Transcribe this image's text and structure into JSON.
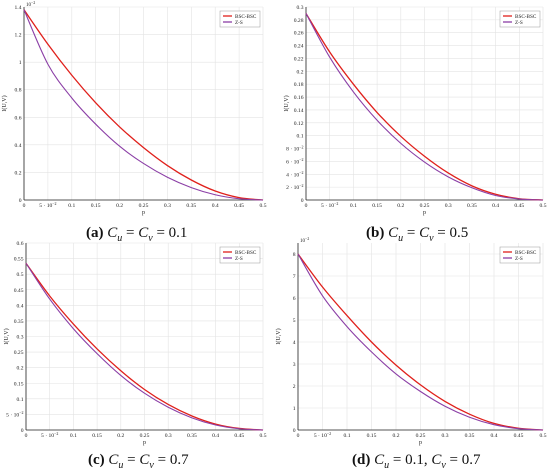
{
  "chart_data": [
    {
      "type": "line",
      "panel": "a",
      "caption_tag": "(a)",
      "caption_parts": [
        "C",
        "u",
        " = ",
        "C",
        "v",
        " = 0.1"
      ],
      "xlabel": "p",
      "ylabel": "I(U,V)",
      "y_multiplier_label": "10",
      "y_multiplier_exp": "−2",
      "xlim": [
        0,
        0.5
      ],
      "ylim": [
        0,
        1.4
      ],
      "x_ticks": [
        "0",
        "5 · 10",
        "0.1",
        "0.15",
        "0.2",
        "0.25",
        "0.3",
        "0.35",
        "0.4",
        "0.45",
        "0.5"
      ],
      "x_tick_values": [
        0,
        0.05,
        0.1,
        0.15,
        0.2,
        0.25,
        0.3,
        0.35,
        0.4,
        0.45,
        0.5
      ],
      "x_tick_exp": "−2",
      "y_ticks": [
        "0",
        "0.2",
        "0.4",
        "0.6",
        "0.8",
        "1",
        "1.2",
        "1.4"
      ],
      "y_tick_values": [
        0,
        0.2,
        0.4,
        0.6,
        0.8,
        1.0,
        1.2,
        1.4
      ],
      "legend_position": "top-right",
      "x": [
        0,
        0.05,
        0.1,
        0.15,
        0.2,
        0.25,
        0.3,
        0.35,
        0.4,
        0.45,
        0.5
      ],
      "series": [
        {
          "name": "BSC-BSC",
          "color": "#e0201b",
          "values": [
            1.38,
            1.13,
            0.905,
            0.705,
            0.53,
            0.38,
            0.25,
            0.145,
            0.065,
            0.017,
            0
          ]
        },
        {
          "name": "Z-S",
          "color": "#8b3fa6",
          "values": [
            1.38,
            0.985,
            0.74,
            0.55,
            0.39,
            0.265,
            0.165,
            0.09,
            0.038,
            0.009,
            0
          ]
        }
      ]
    },
    {
      "type": "line",
      "panel": "b",
      "caption_tag": "(b)",
      "caption_parts": [
        "C",
        "u",
        " = ",
        "C",
        "v",
        " = 0.5"
      ],
      "xlabel": "p",
      "ylabel": "I(U,V)",
      "xlim": [
        0,
        0.5
      ],
      "ylim": [
        0,
        0.3
      ],
      "x_ticks": [
        "0",
        "5 · 10",
        "0.1",
        "0.15",
        "0.2",
        "0.25",
        "0.3",
        "0.35",
        "0.4",
        "0.45",
        "0.5"
      ],
      "x_tick_values": [
        0,
        0.05,
        0.1,
        0.15,
        0.2,
        0.25,
        0.3,
        0.35,
        0.4,
        0.45,
        0.5
      ],
      "x_tick_exp": "−2",
      "y_ticks": [
        "0",
        "2 · 10",
        "4 · 10",
        "6 · 10",
        "8 · 10",
        "0.1",
        "0.12",
        "0.14",
        "0.16",
        "0.18",
        "0.2",
        "0.22",
        "0.24",
        "0.26",
        "0.28",
        "0.3"
      ],
      "y_tick_exps": [
        "",
        "−2",
        "−2",
        "−2",
        "−2",
        "",
        "",
        "",
        "",
        "",
        "",
        "",
        "",
        "",
        "",
        ""
      ],
      "y_tick_values": [
        0,
        0.02,
        0.04,
        0.06,
        0.08,
        0.1,
        0.12,
        0.14,
        0.16,
        0.18,
        0.2,
        0.22,
        0.24,
        0.26,
        0.28,
        0.3
      ],
      "legend_position": "top-right",
      "x": [
        0,
        0.05,
        0.1,
        0.15,
        0.2,
        0.25,
        0.3,
        0.35,
        0.4,
        0.45,
        0.5
      ],
      "series": [
        {
          "name": "BSC-BSC",
          "color": "#e0201b",
          "values": [
            0.29,
            0.23,
            0.18,
            0.136,
            0.099,
            0.068,
            0.042,
            0.022,
            0.009,
            0.002,
            0
          ]
        },
        {
          "name": "Z-S",
          "color": "#8b3fa6",
          "values": [
            0.29,
            0.222,
            0.168,
            0.124,
            0.088,
            0.059,
            0.036,
            0.019,
            0.007,
            0.0015,
            0
          ]
        }
      ]
    },
    {
      "type": "line",
      "panel": "c",
      "caption_tag": "(c)",
      "caption_parts": [
        "C",
        "u",
        " = ",
        "C",
        "v",
        " = 0.7"
      ],
      "xlabel": "p",
      "ylabel": "I(U,V)",
      "xlim": [
        0,
        0.5
      ],
      "ylim": [
        0,
        0.6
      ],
      "x_ticks": [
        "0",
        "5 · 10",
        "0.1",
        "0.15",
        "0.2",
        "0.25",
        "0.3",
        "0.35",
        "0.4",
        "0.45",
        "0.5"
      ],
      "x_tick_values": [
        0,
        0.05,
        0.1,
        0.15,
        0.2,
        0.25,
        0.3,
        0.35,
        0.4,
        0.45,
        0.5
      ],
      "x_tick_exp": "−2",
      "y_ticks": [
        "0",
        "5 · 10",
        "0.1",
        "0.15",
        "0.2",
        "0.25",
        "0.3",
        "0.35",
        "0.4",
        "0.45",
        "0.5",
        "0.55",
        "0.6"
      ],
      "y_tick_exps": [
        "",
        "−2",
        "",
        "",
        "",
        "",
        "",
        "",
        "",
        "",
        "",
        "",
        ""
      ],
      "y_tick_values": [
        0,
        0.05,
        0.1,
        0.15,
        0.2,
        0.25,
        0.3,
        0.35,
        0.4,
        0.45,
        0.5,
        0.55,
        0.6
      ],
      "legend_position": "top-right",
      "x": [
        0,
        0.05,
        0.1,
        0.15,
        0.2,
        0.25,
        0.3,
        0.35,
        0.4,
        0.45,
        0.5
      ],
      "series": [
        {
          "name": "BSC-BSC",
          "color": "#e0201b",
          "values": [
            0.535,
            0.43,
            0.34,
            0.26,
            0.19,
            0.13,
            0.082,
            0.045,
            0.019,
            0.005,
            0
          ]
        },
        {
          "name": "Z-S",
          "color": "#8b3fa6",
          "values": [
            0.535,
            0.42,
            0.325,
            0.245,
            0.175,
            0.118,
            0.073,
            0.039,
            0.016,
            0.004,
            0
          ]
        }
      ]
    },
    {
      "type": "line",
      "panel": "d",
      "caption_tag": "(d)",
      "caption_parts": [
        "C",
        "u",
        " = 0.1, ",
        "C",
        "v",
        " = 0.7"
      ],
      "xlabel": "p",
      "ylabel": "I(U,V)",
      "y_multiplier_label": "10",
      "y_multiplier_exp": "−2",
      "xlim": [
        0,
        0.5
      ],
      "ylim": [
        0,
        8.5
      ],
      "x_ticks": [
        "0",
        "5 · 10",
        "0.1",
        "0.15",
        "0.2",
        "0.25",
        "0.3",
        "0.35",
        "0.4",
        "0.45",
        "0.5"
      ],
      "x_tick_values": [
        0,
        0.05,
        0.1,
        0.15,
        0.2,
        0.25,
        0.3,
        0.35,
        0.4,
        0.45,
        0.5
      ],
      "x_tick_exp": "−2",
      "y_ticks": [
        "0",
        "1",
        "2",
        "3",
        "4",
        "5",
        "6",
        "7",
        "8"
      ],
      "y_tick_values": [
        0,
        1,
        2,
        3,
        4,
        5,
        6,
        7,
        8
      ],
      "legend_position": "top-right",
      "x": [
        0,
        0.05,
        0.1,
        0.15,
        0.2,
        0.25,
        0.3,
        0.35,
        0.4,
        0.45,
        0.5
      ],
      "series": [
        {
          "name": "BSC-BSC",
          "color": "#e0201b",
          "values": [
            8.0,
            6.5,
            5.2,
            4.0,
            2.95,
            2.05,
            1.3,
            0.72,
            0.3,
            0.08,
            0
          ]
        },
        {
          "name": "Z-S",
          "color": "#8b3fa6",
          "values": [
            8.0,
            6.1,
            4.7,
            3.55,
            2.55,
            1.75,
            1.08,
            0.58,
            0.24,
            0.06,
            0
          ]
        }
      ]
    }
  ]
}
